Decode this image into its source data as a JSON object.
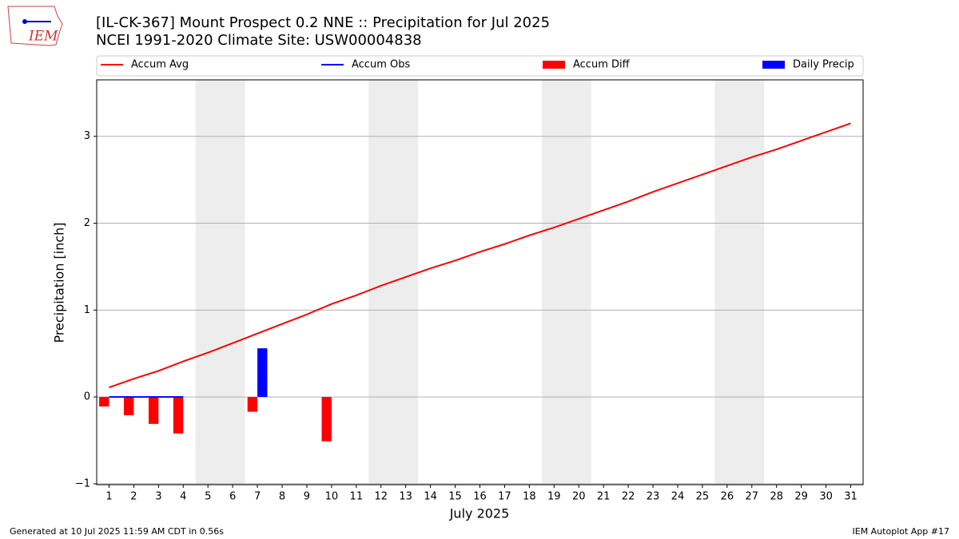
{
  "chart_data": {
    "type": "combo",
    "title": "[IL-CK-367] Mount Prospect 0.2 NNE :: Precipitation for Jul 2025",
    "subtitle": "NCEI 1991-2020 Climate Site: USW00004838",
    "x_label": "July 2025",
    "y_label": "Precipitation [inch]",
    "x": [
      1,
      2,
      3,
      4,
      5,
      6,
      7,
      8,
      9,
      10,
      11,
      12,
      13,
      14,
      15,
      16,
      17,
      18,
      19,
      20,
      21,
      22,
      23,
      24,
      25,
      26,
      27,
      28,
      29,
      30,
      31
    ],
    "series": [
      {
        "name": "Accum Avg",
        "type": "line",
        "color": "#ff0000",
        "values": [
          0.11,
          0.21,
          0.3,
          0.41,
          0.51,
          0.62,
          0.73,
          0.84,
          0.95,
          1.07,
          1.17,
          1.28,
          1.38,
          1.48,
          1.57,
          1.67,
          1.76,
          1.86,
          1.95,
          2.05,
          2.15,
          2.25,
          2.36,
          2.46,
          2.56,
          2.66,
          2.76,
          2.85,
          2.95,
          3.05,
          3.15
        ]
      },
      {
        "name": "Accum Obs",
        "type": "line",
        "color": "#0000ff",
        "values": [
          0,
          0,
          0,
          0,
          null,
          null,
          null,
          null,
          null,
          null,
          null,
          null,
          null,
          null,
          null,
          null,
          null,
          null,
          null,
          null,
          null,
          null,
          null,
          null,
          null,
          null,
          null,
          null,
          null,
          null,
          null
        ]
      },
      {
        "name": "Accum Diff",
        "type": "bar",
        "color": "#ff0000",
        "values": [
          -0.11,
          -0.21,
          -0.31,
          -0.42,
          null,
          null,
          -0.17,
          null,
          null,
          -0.51,
          null,
          null,
          null,
          null,
          null,
          null,
          null,
          null,
          null,
          null,
          null,
          null,
          null,
          null,
          null,
          null,
          null,
          null,
          null,
          null,
          null
        ]
      },
      {
        "name": "Daily Precip",
        "type": "bar",
        "color": "#0000ff",
        "values": [
          null,
          null,
          null,
          null,
          null,
          null,
          0.56,
          null,
          null,
          null,
          null,
          null,
          null,
          null,
          null,
          null,
          null,
          null,
          null,
          null,
          null,
          null,
          null,
          null,
          null,
          null,
          null,
          null,
          null,
          null,
          null
        ]
      }
    ],
    "shaded_x": [
      [
        4.5,
        6.5
      ],
      [
        11.5,
        13.5
      ],
      [
        18.5,
        20.5
      ],
      [
        25.5,
        27.5
      ]
    ],
    "xlim": [
      0.5,
      31.5
    ],
    "ylim": [
      -1.01,
      3.65
    ],
    "xticks": [
      1,
      2,
      3,
      4,
      5,
      6,
      7,
      8,
      9,
      10,
      11,
      12,
      13,
      14,
      15,
      16,
      17,
      18,
      19,
      20,
      21,
      22,
      23,
      24,
      25,
      26,
      27,
      28,
      29,
      30,
      31
    ],
    "yticks": [
      {
        "value": -1,
        "label": "−1"
      },
      0,
      1,
      2,
      3
    ],
    "grid": true,
    "legend": "top",
    "footer_left": "Generated at 10 Jul 2025 11:59 AM CDT in 0.56s",
    "footer_right": "IEM Autoplot App #17",
    "logo_text": "IEM"
  }
}
